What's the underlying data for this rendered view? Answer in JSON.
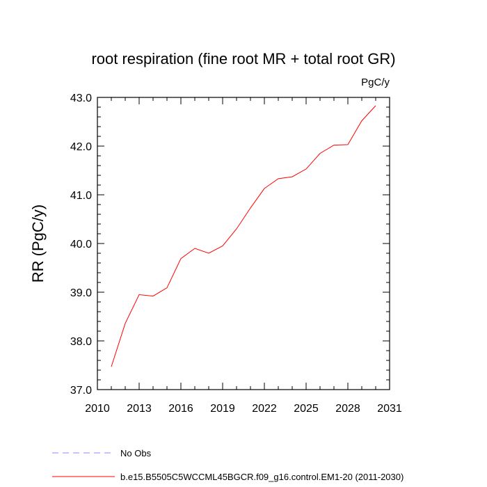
{
  "chart_data": {
    "type": "line",
    "title": "root respiration (fine root MR + total root GR)",
    "units": "PgC/y",
    "ylabel": "RR  (PgC/y)",
    "xlabel": "",
    "xlim": [
      2010,
      2031
    ],
    "ylim": [
      37.0,
      43.0
    ],
    "x_ticks": [
      "2010",
      "2013",
      "2016",
      "2019",
      "2022",
      "2025",
      "2028",
      "2031"
    ],
    "y_ticks": [
      "37.0",
      "38.0",
      "39.0",
      "40.0",
      "41.0",
      "42.0",
      "43.0"
    ],
    "grid": false,
    "legend_position": "bottom",
    "series": [
      {
        "name": "b.e15.B5505C5WCCML45BGCR.f09_g16.control.EM1-20 (2011-2030)",
        "color": "#ff0000",
        "style": "solid",
        "x": [
          2011,
          2012,
          2013,
          2014,
          2015,
          2016,
          2017,
          2018,
          2019,
          2020,
          2021,
          2022,
          2023,
          2024,
          2025,
          2026,
          2027,
          2028,
          2029,
          2030
        ],
        "y": [
          37.47,
          38.36,
          38.95,
          38.92,
          39.09,
          39.69,
          39.9,
          39.8,
          39.95,
          40.3,
          40.73,
          41.13,
          41.33,
          41.37,
          41.53,
          41.85,
          42.02,
          42.03,
          42.52,
          42.83
        ]
      },
      {
        "name": "No Obs",
        "color": "#8888ff",
        "style": "dashed",
        "x": [],
        "y": []
      }
    ]
  }
}
